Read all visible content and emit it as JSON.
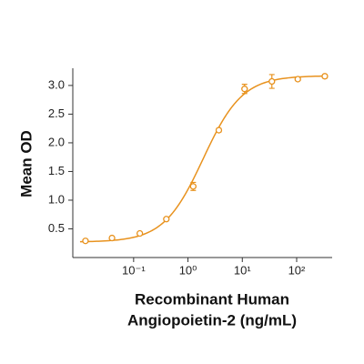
{
  "chart_data": {
    "type": "scatter",
    "ylabel": "Mean OD",
    "xlabel": [
      "Recombinant Human",
      "Angiopoietin-2 (ng/mL)"
    ],
    "x": [
      0.013,
      0.04,
      0.13,
      0.4,
      1.25,
      3.7,
      11,
      35,
      105,
      330
    ],
    "series": [
      {
        "color": "#E8921E",
        "values": [
          0.29,
          0.34,
          0.42,
          0.67,
          1.24,
          2.22,
          2.94,
          3.07,
          3.11,
          3.16
        ],
        "errors": [
          0.02,
          0.02,
          0.02,
          0.02,
          0.07,
          0.03,
          0.08,
          0.12,
          0.02,
          0.03
        ]
      }
    ],
    "fit": {
      "bottom": 0.27,
      "top": 3.17,
      "ec50": 1.9,
      "hill": 1.2
    },
    "xscale": "log",
    "xlim": [
      0.0076,
      450
    ],
    "ylim": [
      0,
      3.3
    ],
    "xticks": [
      {
        "value": 0.1,
        "label": "10⁻¹"
      },
      {
        "value": 1,
        "label": "10⁰"
      },
      {
        "value": 10,
        "label": "10¹"
      },
      {
        "value": 100,
        "label": "10²"
      }
    ],
    "yticks": [
      0.5,
      {
        "value": 1,
        "label": "1.0"
      },
      1.5,
      {
        "value": 2,
        "label": "2.0"
      },
      2.5,
      {
        "value": 3,
        "label": "3.0"
      }
    ]
  }
}
